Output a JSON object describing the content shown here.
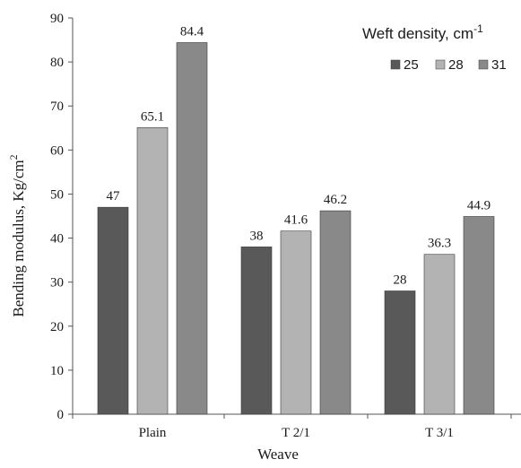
{
  "chart_data": {
    "type": "bar",
    "categories": [
      "Plain",
      "T 2/1",
      "T 3/1"
    ],
    "series": [
      {
        "name": "25",
        "values": [
          47,
          38,
          28
        ],
        "color": "#595959"
      },
      {
        "name": "28",
        "values": [
          65.1,
          41.6,
          36.3
        ],
        "color": "#b3b3b3"
      },
      {
        "name": "31",
        "values": [
          84.4,
          46.2,
          44.9
        ],
        "color": "#898989"
      }
    ],
    "data_labels": [
      [
        "47",
        "38",
        "28"
      ],
      [
        "65.1",
        "41.6",
        "36.3"
      ],
      [
        "84.4",
        "46.2",
        "44.9"
      ]
    ],
    "xlabel": "Weave",
    "ylabel": "Bending modulus, Kg/cm",
    "ylabel_superscript": "2",
    "ylim": [
      0,
      90
    ],
    "yticks": [
      "0",
      "10",
      "20",
      "30",
      "40",
      "50",
      "60",
      "70",
      "80",
      "90"
    ],
    "legend_title": "Weft density, cm",
    "legend_title_superscript": "-1",
    "legend_position": "top-right",
    "grid": false
  }
}
